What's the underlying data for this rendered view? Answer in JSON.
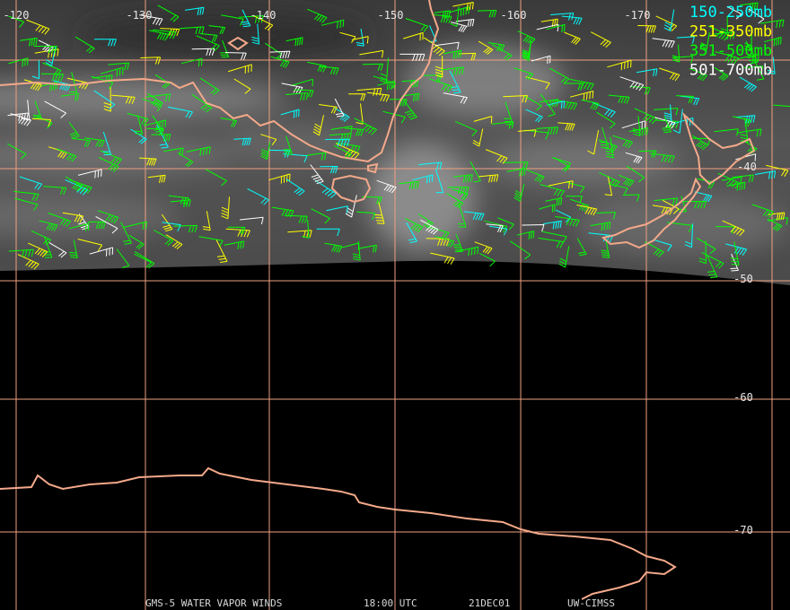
{
  "longitude_labels": [
    "-120",
    "-130",
    "-140",
    "-150",
    "-160",
    "-170"
  ],
  "latitude_labels": [
    "-40",
    "-50",
    "-60",
    "-70"
  ],
  "legend": [
    {
      "label": "150-250mb",
      "color": "#00ffff"
    },
    {
      "label": "251-350mb",
      "color": "#ffff00"
    },
    {
      "label": "351-500mb",
      "color": "#00ff00"
    },
    {
      "label": "501-700mb",
      "color": "#ffffff"
    }
  ],
  "footer": {
    "product": "GMS-5 WATER VAPOR WINDS",
    "time": "18:00 UTC",
    "date": "21DEC01",
    "source": "UW-CIMSS"
  }
}
